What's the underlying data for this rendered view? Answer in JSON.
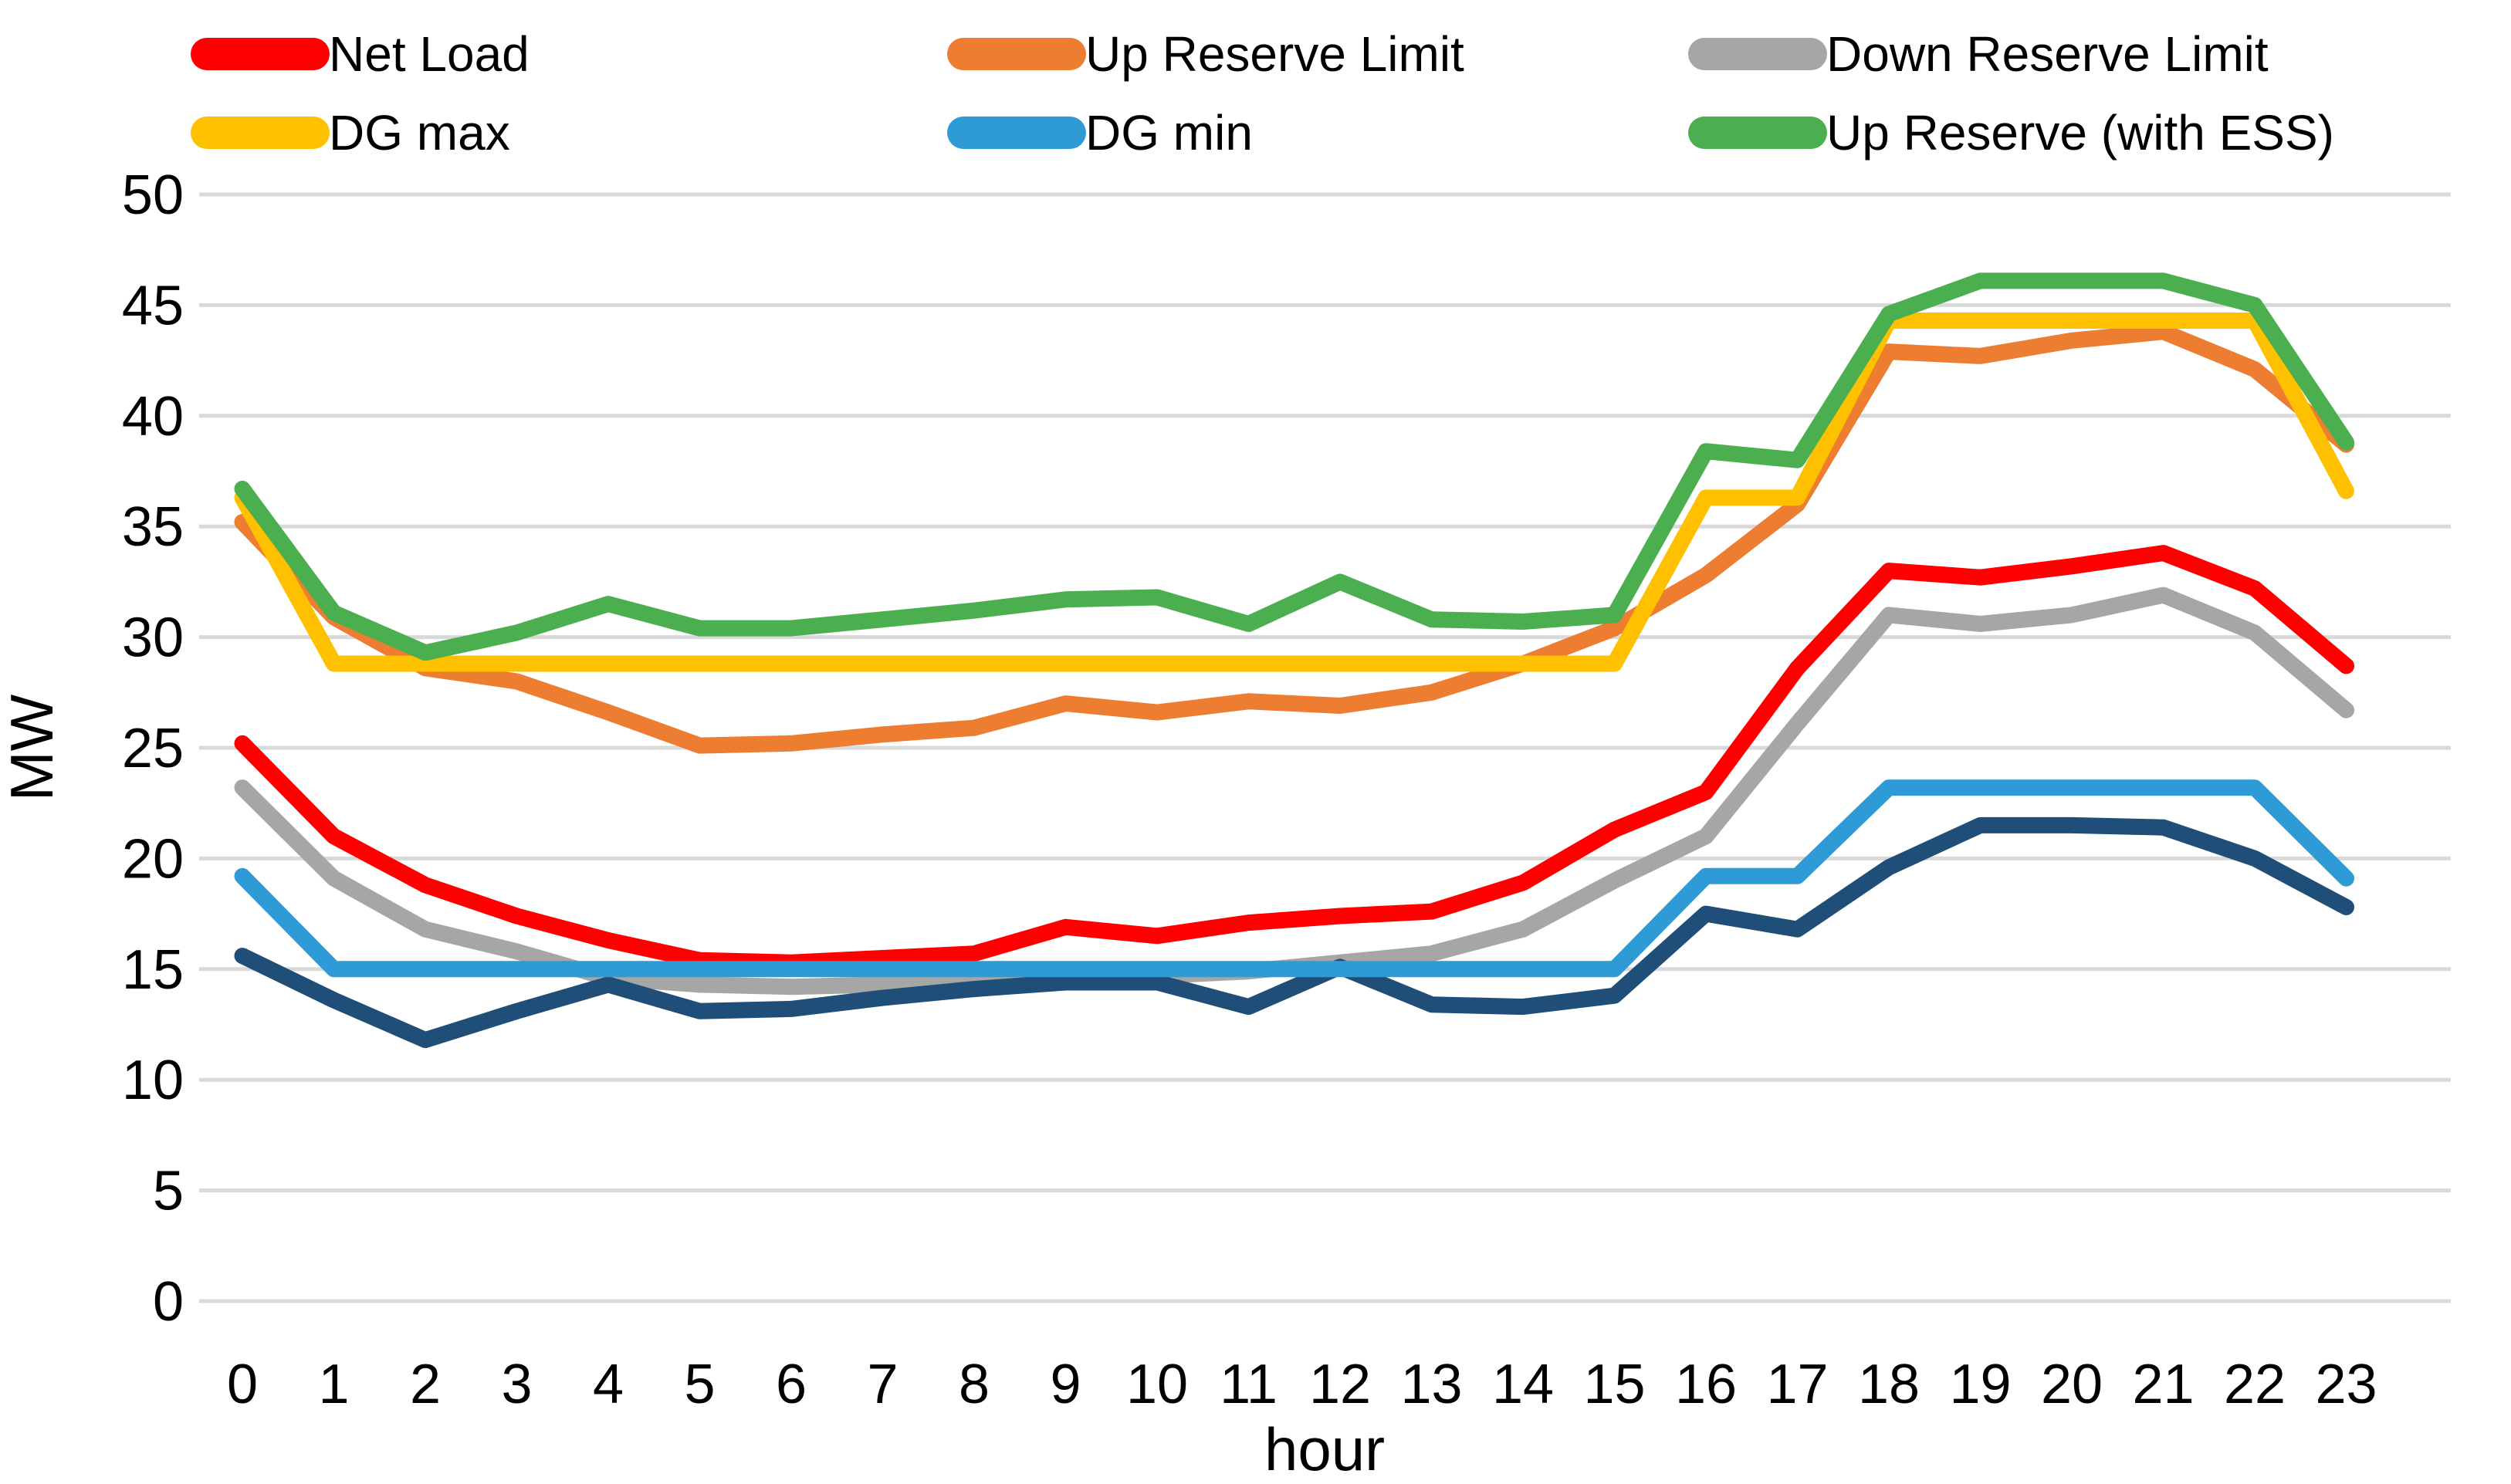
{
  "chart_data": {
    "type": "line",
    "title": "",
    "xlabel": "hour",
    "ylabel": "MW",
    "x": [
      0,
      1,
      2,
      3,
      4,
      5,
      6,
      7,
      8,
      9,
      10,
      11,
      12,
      13,
      14,
      15,
      16,
      17,
      18,
      19,
      20,
      21,
      22,
      23
    ],
    "x_tick_labels": [
      "0",
      "1",
      "2",
      "3",
      "4",
      "5",
      "6",
      "7",
      "8",
      "9",
      "10",
      "11",
      "12",
      "13",
      "14",
      "15",
      "16",
      "17",
      "18",
      "19",
      "20",
      "21",
      "22",
      "23"
    ],
    "y_ticks": [
      0,
      5,
      10,
      15,
      20,
      25,
      30,
      35,
      40,
      45,
      50
    ],
    "ylim": [
      0,
      50
    ],
    "grid": true,
    "grid_color": "#D9D9D9",
    "legend_position": "top",
    "series": [
      {
        "name": "Net Load",
        "color": "#FF0000",
        "in_legend": true,
        "values": [
          25.2,
          21.0,
          18.8,
          17.4,
          16.3,
          15.4,
          15.3,
          15.5,
          15.7,
          16.9,
          16.5,
          17.1,
          17.4,
          17.6,
          18.9,
          21.3,
          23.0,
          28.6,
          33.0,
          32.7,
          33.2,
          33.8,
          32.2,
          28.7
        ]
      },
      {
        "name": "Up Reserve Limit",
        "color": "#ED7D31",
        "in_legend": true,
        "values": [
          35.2,
          30.9,
          28.6,
          28.0,
          26.6,
          25.1,
          25.2,
          25.6,
          25.9,
          27.0,
          26.6,
          27.1,
          26.9,
          27.5,
          28.8,
          30.4,
          32.8,
          36.0,
          42.9,
          42.7,
          43.4,
          43.8,
          42.1,
          38.7
        ]
      },
      {
        "name": "Down Reserve Limit",
        "color": "#A6A6A6",
        "in_legend": true,
        "values": [
          23.2,
          19.1,
          16.8,
          15.8,
          14.6,
          14.3,
          14.2,
          14.3,
          14.5,
          14.7,
          14.7,
          14.9,
          15.3,
          15.7,
          16.8,
          19.0,
          21.0,
          26.1,
          31.0,
          30.6,
          31.0,
          31.9,
          30.2,
          26.7
        ]
      },
      {
        "name": "DG max",
        "color": "#FFC000",
        "in_legend": true,
        "values": [
          36.3,
          28.8,
          28.8,
          28.8,
          28.8,
          28.8,
          28.8,
          28.8,
          28.8,
          28.8,
          28.8,
          28.8,
          28.8,
          28.8,
          28.8,
          28.8,
          36.3,
          36.3,
          44.3,
          44.3,
          44.3,
          44.3,
          44.3,
          36.6
        ]
      },
      {
        "name": "DG min",
        "color": "#2E9BD6",
        "in_legend": true,
        "values": [
          19.2,
          15.0,
          15.0,
          15.0,
          15.0,
          15.0,
          15.0,
          15.0,
          15.0,
          15.0,
          15.0,
          15.0,
          15.0,
          15.0,
          15.0,
          15.0,
          19.2,
          19.2,
          23.2,
          23.2,
          23.2,
          23.2,
          23.2,
          19.1
        ]
      },
      {
        "name": "Up Reserve (with ESS)",
        "color": "#4BAE4F",
        "in_legend": true,
        "values": [
          36.7,
          31.1,
          29.3,
          30.2,
          31.5,
          30.4,
          30.4,
          30.8,
          31.2,
          31.7,
          31.8,
          30.6,
          32.5,
          30.8,
          30.7,
          31.0,
          38.4,
          38.0,
          44.6,
          46.1,
          46.1,
          46.1,
          45.0,
          38.8
        ]
      },
      {
        "name": "",
        "color": "#1F4E79",
        "in_legend": false,
        "values": [
          15.6,
          13.6,
          11.8,
          13.1,
          14.3,
          13.1,
          13.2,
          13.7,
          14.1,
          14.4,
          14.4,
          13.3,
          15.1,
          13.4,
          13.3,
          13.8,
          17.5,
          16.8,
          19.6,
          21.5,
          21.5,
          21.4,
          20.0,
          17.8
        ]
      }
    ],
    "draw_order": [
      0,
      1,
      2,
      6,
      3,
      4,
      5
    ]
  }
}
